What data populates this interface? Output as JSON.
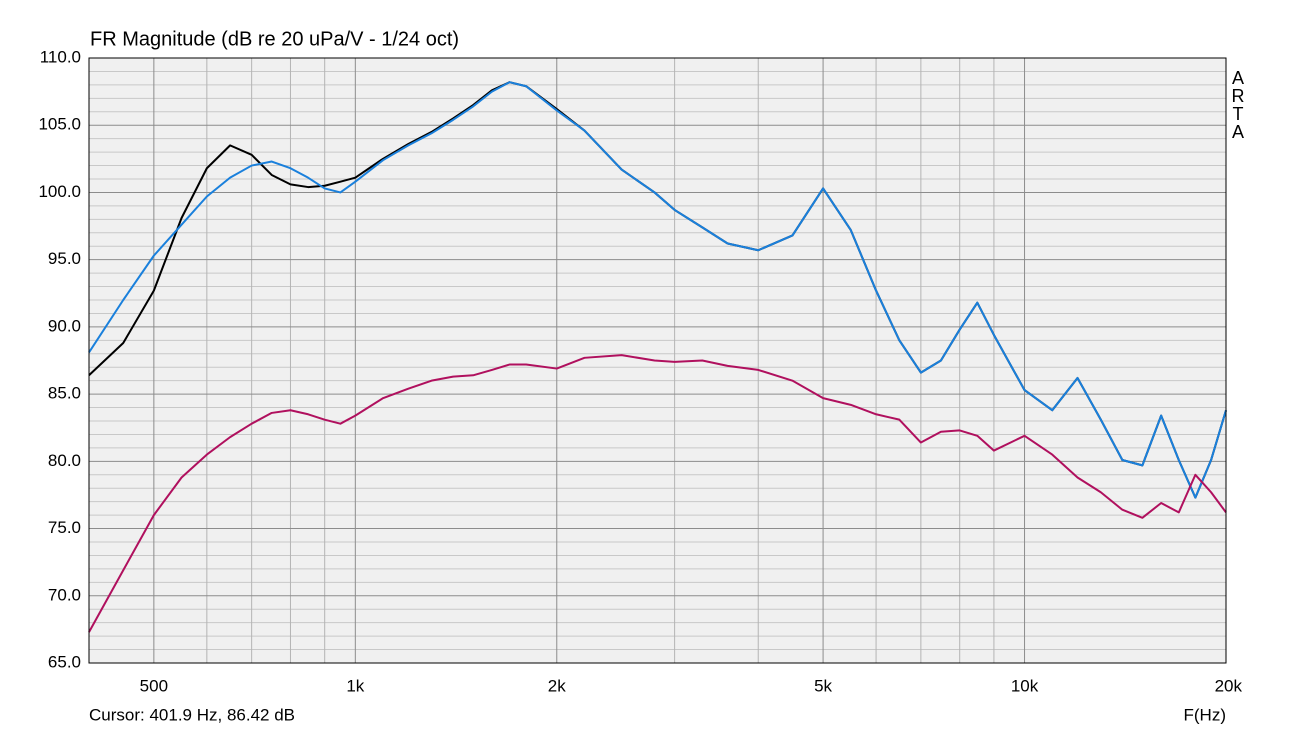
{
  "chart_data": {
    "type": "line",
    "title": "FR Magnitude (dB re 20 uPa/V - 1/24 oct)",
    "brand": "ARTA",
    "cursor": "Cursor: 401.9 Hz, 86.42 dB",
    "xlabel": "F(Hz)",
    "xscale": "log",
    "xlim": [
      400,
      20000
    ],
    "ylim": [
      65,
      110
    ],
    "xticks": [
      {
        "value": 500,
        "label": "500"
      },
      {
        "value": 1000,
        "label": "1k"
      },
      {
        "value": 2000,
        "label": "2k"
      },
      {
        "value": 5000,
        "label": "5k"
      },
      {
        "value": 10000,
        "label": "10k"
      },
      {
        "value": 20000,
        "label": "20k"
      }
    ],
    "xminorticks": [
      600,
      700,
      800,
      900,
      3000,
      4000,
      6000,
      7000,
      8000,
      9000
    ],
    "yticks": [
      {
        "value": 65,
        "label": "65.0"
      },
      {
        "value": 70,
        "label": "70.0"
      },
      {
        "value": 75,
        "label": "75.0"
      },
      {
        "value": 80,
        "label": "80.0"
      },
      {
        "value": 85,
        "label": "85.0"
      },
      {
        "value": 90,
        "label": "90.0"
      },
      {
        "value": 95,
        "label": "95.0"
      },
      {
        "value": 100,
        "label": "100.0"
      },
      {
        "value": 105,
        "label": "105.0"
      },
      {
        "value": 110,
        "label": "110.0"
      }
    ],
    "yminorticks": [
      66,
      67,
      68,
      69,
      71,
      72,
      73,
      74,
      76,
      77,
      78,
      79,
      81,
      82,
      83,
      84,
      86,
      87,
      88,
      89,
      91,
      92,
      93,
      94,
      96,
      97,
      98,
      99,
      101,
      102,
      103,
      104,
      106,
      107,
      108,
      109
    ],
    "grid": true,
    "x": [
      400,
      450,
      500,
      550,
      600,
      650,
      700,
      750,
      800,
      850,
      900,
      950,
      1000,
      1100,
      1200,
      1300,
      1400,
      1500,
      1600,
      1700,
      1800,
      2000,
      2200,
      2500,
      2800,
      3000,
      3300,
      3600,
      4000,
      4500,
      5000,
      5500,
      6000,
      6500,
      7000,
      7500,
      8000,
      8500,
      9000,
      10000,
      11000,
      12000,
      13000,
      14000,
      15000,
      16000,
      17000,
      18000,
      19000,
      20000
    ],
    "series": [
      {
        "color": "#000000",
        "values": [
          86.4,
          88.8,
          92.7,
          98.1,
          101.8,
          103.5,
          102.8,
          101.3,
          100.6,
          100.4,
          100.5,
          100.8,
          101.1,
          102.5,
          103.6,
          104.5,
          105.5,
          106.5,
          107.6,
          108.2,
          107.9,
          106.2,
          104.6,
          101.7,
          100.0,
          98.7,
          97.4,
          96.2,
          95.7,
          96.8,
          100.3,
          97.2,
          92.7,
          89.0,
          86.6,
          87.5,
          89.8,
          91.8,
          89.4,
          85.3,
          83.8,
          86.2,
          83.1,
          80.1,
          79.7,
          83.4,
          80.1,
          77.3,
          80.1,
          83.8
        ]
      },
      {
        "color": "#1a80dc",
        "values": [
          88.1,
          92.0,
          95.3,
          97.6,
          99.7,
          101.1,
          102.0,
          102.3,
          101.8,
          101.1,
          100.3,
          100.0,
          100.8,
          102.4,
          103.5,
          104.4,
          105.4,
          106.4,
          107.5,
          108.2,
          107.9,
          106.1,
          104.6,
          101.7,
          100.0,
          98.7,
          97.4,
          96.2,
          95.7,
          96.8,
          100.3,
          97.2,
          92.7,
          89.0,
          86.6,
          87.5,
          89.8,
          91.8,
          89.4,
          85.3,
          83.8,
          86.2,
          83.1,
          80.1,
          79.7,
          83.4,
          80.1,
          77.3,
          80.1,
          83.8
        ]
      },
      {
        "color": "#b0105e",
        "values": [
          67.3,
          71.9,
          76.0,
          78.8,
          80.5,
          81.8,
          82.8,
          83.6,
          83.8,
          83.5,
          83.1,
          82.8,
          83.4,
          84.7,
          85.4,
          86.0,
          86.3,
          86.4,
          86.8,
          87.2,
          87.2,
          86.9,
          87.7,
          87.9,
          87.5,
          87.4,
          87.5,
          87.1,
          86.8,
          86.0,
          84.7,
          84.2,
          83.5,
          83.1,
          81.4,
          82.2,
          82.3,
          81.9,
          80.8,
          81.9,
          80.5,
          78.8,
          77.7,
          76.4,
          75.8,
          76.9,
          76.2,
          79.0,
          77.7,
          76.2
        ]
      }
    ]
  }
}
